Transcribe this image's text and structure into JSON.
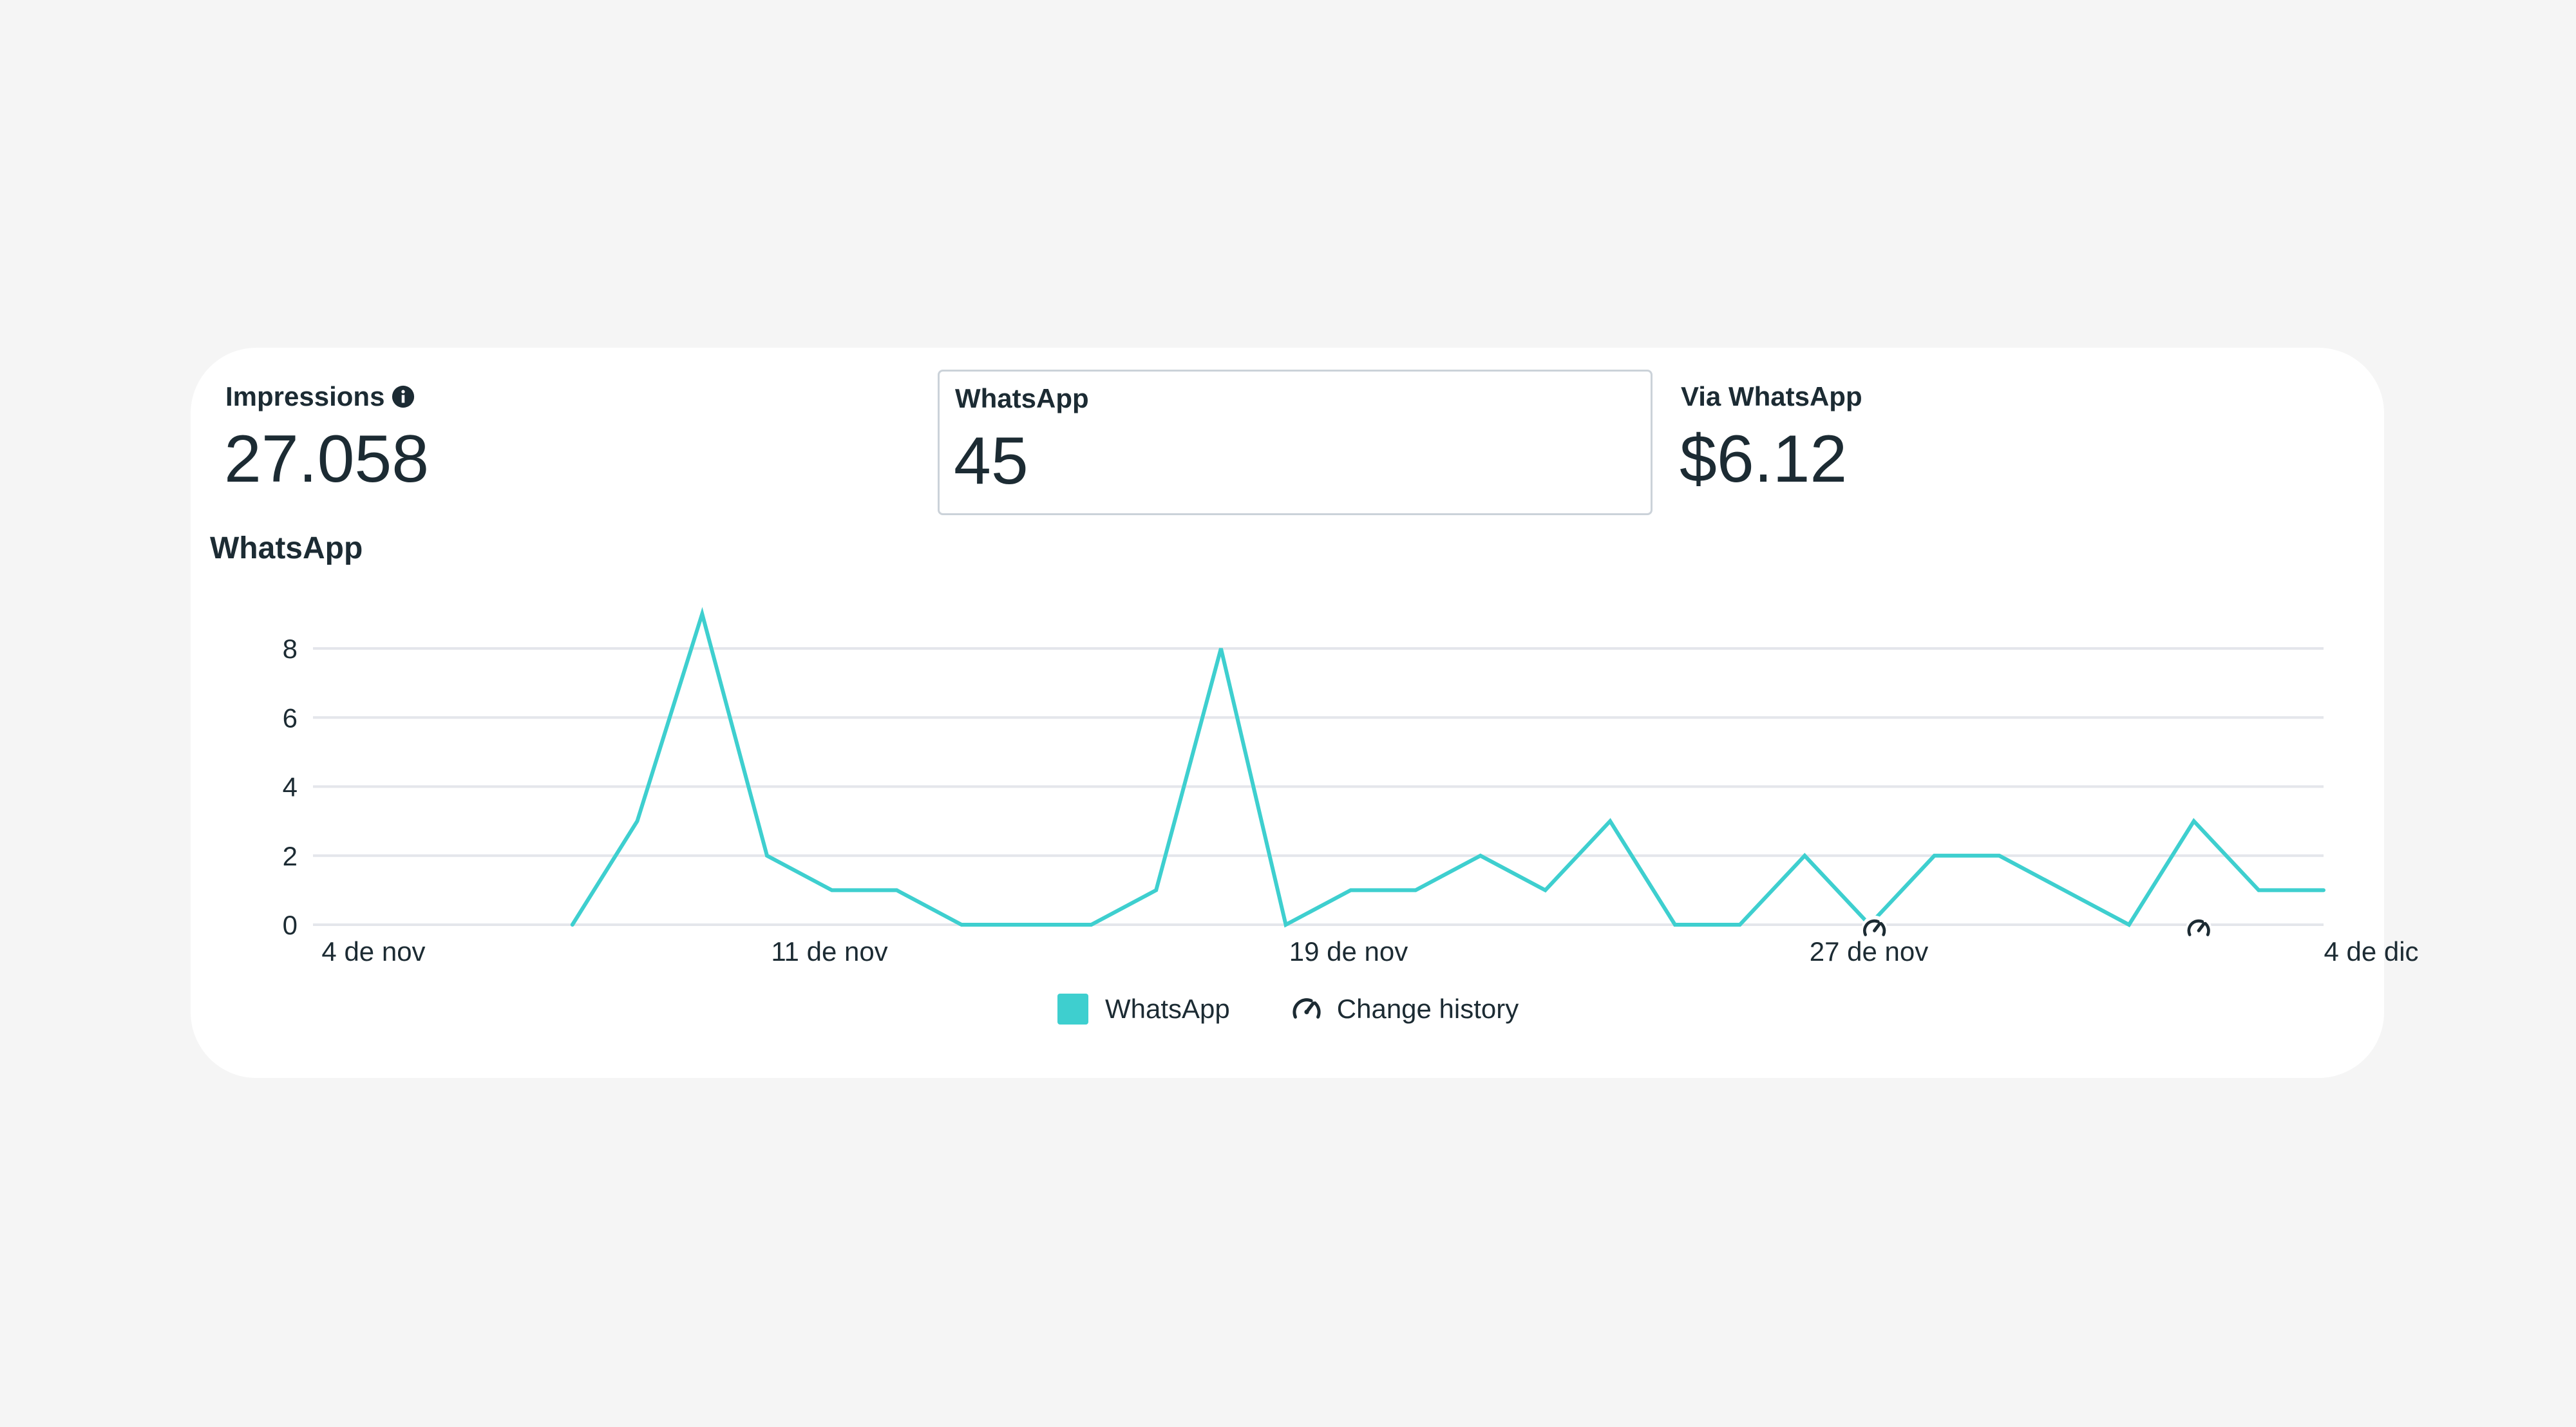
{
  "metrics": {
    "impressions": {
      "label": "Impressions",
      "value": "27.058"
    },
    "whatsapp": {
      "label": "WhatsApp",
      "value": "45"
    },
    "via_whatsapp": {
      "label": "Via WhatsApp",
      "value": "$6.12"
    }
  },
  "icons": {
    "info": "info-icon",
    "change_history": "speedometer-icon"
  },
  "colors": {
    "series": "#3ecfcf",
    "grid": "#e4e6eb",
    "text": "#1c2b33"
  },
  "legend": {
    "series_label": "WhatsApp",
    "change_history_label": "Change history"
  },
  "chart_data": {
    "type": "line",
    "title": "WhatsApp",
    "xlabel": "",
    "ylabel": "",
    "ylim": [
      0,
      8
    ],
    "yticks": [
      0,
      2,
      4,
      6,
      8
    ],
    "grid": true,
    "legend_position": "bottom",
    "x_tick_labels": [
      "4 de nov",
      "11 de nov",
      "19 de nov",
      "27 de nov",
      "4 de dic"
    ],
    "series": [
      {
        "name": "WhatsApp",
        "color": "#3ecfcf",
        "x": [
          "8 nov",
          "9 nov",
          "10 nov",
          "11 nov",
          "12 nov",
          "13 nov",
          "14 nov",
          "15 nov",
          "16 nov",
          "17 nov",
          "18 nov",
          "19 nov",
          "20 nov",
          "21 nov",
          "22 nov",
          "23 nov",
          "24 nov",
          "25 nov",
          "26 nov",
          "27 nov",
          "28 nov",
          "29 nov",
          "30 nov",
          "1 dic",
          "2 dic",
          "3 dic",
          "4 dic",
          "5 dic"
        ],
        "values": [
          0,
          3,
          9,
          2,
          1,
          1,
          0,
          0,
          0,
          1,
          8,
          0,
          1,
          1,
          2,
          1,
          3,
          0,
          0,
          2,
          0,
          2,
          2,
          1,
          0,
          3,
          1,
          1
        ]
      }
    ],
    "change_history_markers": [
      "28 nov",
      "3 dic"
    ]
  }
}
